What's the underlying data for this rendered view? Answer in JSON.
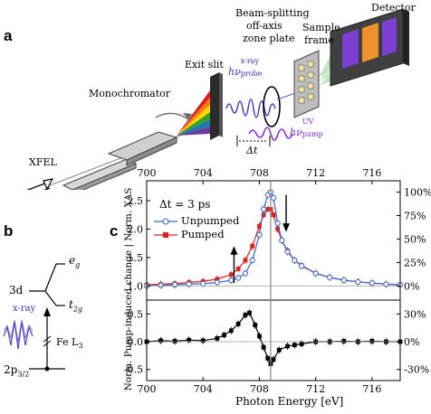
{
  "panel_a": {
    "letter": "a",
    "xfel": "XFEL",
    "monochromator": "Monochromator",
    "exit_slit": "Exit slit",
    "probe_h": "hν",
    "probe_sup": "x-ray",
    "probe_sub": "probe",
    "pump_h": "hν",
    "pump_sup": "UV",
    "pump_sub": "pump",
    "delay": "Δt",
    "zone_plate_1": "Beam-splitting",
    "zone_plate_2": "off-axis",
    "zone_plate_3": "zone plate",
    "sample_1": "Sample",
    "sample_2": "frame",
    "detector": "Detector"
  },
  "panel_b": {
    "letter": "b",
    "level_eg": "e",
    "level_eg_sub": "g",
    "level_t2g": "t",
    "level_t2g_sub": "2g",
    "level_3d": "3d",
    "level_2p": "2p",
    "level_2p_sub": "3/2",
    "xray": "x-ray",
    "edge": "Fe L",
    "edge_sub": "3"
  },
  "panel_c": {
    "letter": "c",
    "annotation": "Δt = 3 ps",
    "xlabel": "Photon Energy [eV]",
    "ylabel": "Norm. Pump-induced change | Norm. XAS"
  },
  "chart_data": {
    "type": "line",
    "xlabel": "Photon Energy [eV]",
    "ylabel": "Norm. Pump-induced change | Norm. XAS",
    "x_ticks": [
      "700",
      "704",
      "708",
      "712",
      "716"
    ],
    "xlim": [
      700,
      718
    ],
    "annotation": "Δt = 3 ps",
    "vertical_line_x": 708.8,
    "top": {
      "ylim": [
        0.75,
        2.85
      ],
      "y_ticks_left": [
        "0.5",
        "1.0",
        "1.5",
        "2.0",
        "2.5"
      ],
      "y_ticks_right": [
        "0%",
        "25%",
        "50%",
        "75%",
        "100%"
      ],
      "legend_position": "top-left",
      "series": [
        {
          "name": "Unpumped",
          "color": "#3a64c8",
          "x": [
            700,
            701,
            702,
            703,
            704,
            705,
            706,
            706.5,
            707,
            707.5,
            708,
            708.3,
            708.6,
            708.8,
            709,
            709.3,
            709.6,
            710,
            710.5,
            711,
            712,
            713,
            714,
            715,
            716,
            717,
            718
          ],
          "y": [
            1.0,
            1.01,
            1.02,
            1.03,
            1.04,
            1.06,
            1.1,
            1.14,
            1.22,
            1.45,
            1.9,
            2.35,
            2.6,
            2.65,
            2.55,
            2.1,
            1.8,
            1.6,
            1.45,
            1.35,
            1.22,
            1.15,
            1.1,
            1.07,
            1.05,
            1.03,
            1.02
          ]
        },
        {
          "name": "Pumped",
          "color": "#e02020",
          "x": [
            700,
            701,
            702,
            703,
            704,
            705,
            706,
            706.5,
            707,
            707.5,
            708,
            708.3,
            708.6,
            708.8,
            709,
            709.3,
            709.6,
            710,
            710.5,
            711,
            712,
            713,
            714,
            715,
            716,
            717,
            718
          ],
          "y": [
            1.02,
            1.03,
            1.04,
            1.06,
            1.08,
            1.12,
            1.2,
            1.3,
            1.45,
            1.7,
            2.05,
            2.25,
            2.35,
            2.35,
            2.25,
            2.0,
            1.8,
            1.62,
            1.45,
            1.36,
            1.22,
            1.15,
            1.1,
            1.07,
            1.05,
            1.03,
            1.02
          ]
        }
      ],
      "arrows": [
        {
          "x": 706.2,
          "direction": "up"
        },
        {
          "x": 709.9,
          "direction": "down"
        }
      ]
    },
    "bottom": {
      "ylim": [
        -0.7,
        0.75
      ],
      "y_ticks_left": [
        "-0.5",
        "0.0",
        "0.5"
      ],
      "y_ticks_right": [
        "-30%",
        "0%",
        "30%"
      ],
      "series": [
        {
          "name": "Difference",
          "color": "#000000",
          "x": [
            700,
            701,
            702,
            703,
            704,
            705,
            705.5,
            706,
            706.5,
            707,
            707.3,
            707.7,
            708,
            708.3,
            708.6,
            708.8,
            709,
            709.4,
            710,
            710.5,
            711,
            712,
            713,
            714,
            715,
            716,
            717,
            718
          ],
          "y": [
            0.0,
            0.02,
            0.01,
            0.03,
            0.02,
            0.06,
            0.12,
            0.2,
            0.32,
            0.48,
            0.52,
            0.3,
            0.1,
            -0.1,
            -0.3,
            -0.4,
            -0.32,
            -0.15,
            -0.08,
            -0.06,
            -0.04,
            0.0,
            0.0,
            0.01,
            0.0,
            0.01,
            0.0,
            0.0
          ]
        }
      ]
    }
  }
}
